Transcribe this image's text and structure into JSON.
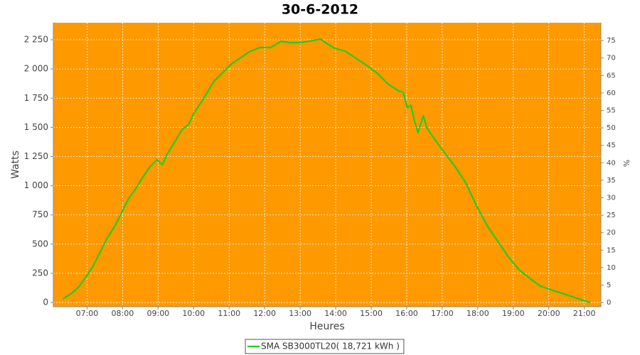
{
  "chart_data": {
    "type": "line",
    "title": "30-6-2012",
    "x_label": "Heures",
    "y_label": "Watts",
    "y2_label": "%",
    "background": "#ff9900",
    "grid": true,
    "legend_position": "bottom",
    "x": [
      "06:19",
      "06:34",
      "06:46",
      "06:58",
      "07:10",
      "07:22",
      "07:34",
      "07:46",
      "07:58",
      "08:10",
      "08:22",
      "08:34",
      "08:46",
      "08:58",
      "09:07",
      "09:16",
      "09:28",
      "09:40",
      "09:52",
      "10:00",
      "10:16",
      "10:34",
      "10:52",
      "11:04",
      "11:22",
      "11:34",
      "11:52",
      "12:10",
      "12:28",
      "12:40",
      "12:58",
      "13:16",
      "13:34",
      "13:46",
      "13:58",
      "14:16",
      "14:34",
      "14:52",
      "15:10",
      "15:28",
      "15:46",
      "15:54",
      "16:01",
      "16:07",
      "16:13",
      "16:19",
      "16:28",
      "16:34",
      "16:46",
      "17:04",
      "17:22",
      "17:40",
      "17:58",
      "18:16",
      "18:34",
      "18:52",
      "19:10",
      "19:28",
      "19:46",
      "20:04",
      "20:22",
      "20:40",
      "20:58",
      "21:10"
    ],
    "series": [
      {
        "name": "SMA SB3000TL20( 18,721 kWh )",
        "color": "#22cc22",
        "values": [
          30,
          79,
          134,
          219,
          310,
          432,
          553,
          645,
          766,
          888,
          973,
          1071,
          1162,
          1223,
          1180,
          1277,
          1375,
          1478,
          1527,
          1618,
          1740,
          1892,
          1983,
          2044,
          2105,
          2147,
          2184,
          2184,
          2238,
          2226,
          2226,
          2238,
          2257,
          2214,
          2178,
          2153,
          2092,
          2031,
          1965,
          1873,
          1813,
          1800,
          1667,
          1691,
          1557,
          1454,
          1600,
          1496,
          1405,
          1283,
          1162,
          1022,
          827,
          657,
          523,
          389,
          280,
          207,
          140,
          109,
          79,
          49,
          18,
          0
        ]
      }
    ],
    "xlim": [
      "06:03",
      "21:28"
    ],
    "xticks": [
      "07:00",
      "08:00",
      "09:00",
      "10:00",
      "11:00",
      "12:00",
      "13:00",
      "14:00",
      "15:00",
      "16:00",
      "17:00",
      "18:00",
      "19:00",
      "20:00",
      "21:00"
    ],
    "ylim": [
      -36,
      2396
    ],
    "yticks": [
      0,
      250,
      500,
      750,
      {
        "value": 1000,
        "label": "1 000"
      },
      {
        "value": 1250,
        "label": "1 250"
      },
      {
        "value": 1500,
        "label": "1 500"
      },
      {
        "value": 1750,
        "label": "1 750"
      },
      {
        "value": 2000,
        "label": "2 000"
      },
      {
        "value": 2250,
        "label": "2 250"
      }
    ],
    "y2lim": [
      -1.2,
      80.1
    ],
    "y2ticks": [
      0,
      5,
      10,
      15,
      20,
      25,
      30,
      35,
      40,
      45,
      50,
      55,
      60,
      65,
      70,
      75
    ]
  }
}
